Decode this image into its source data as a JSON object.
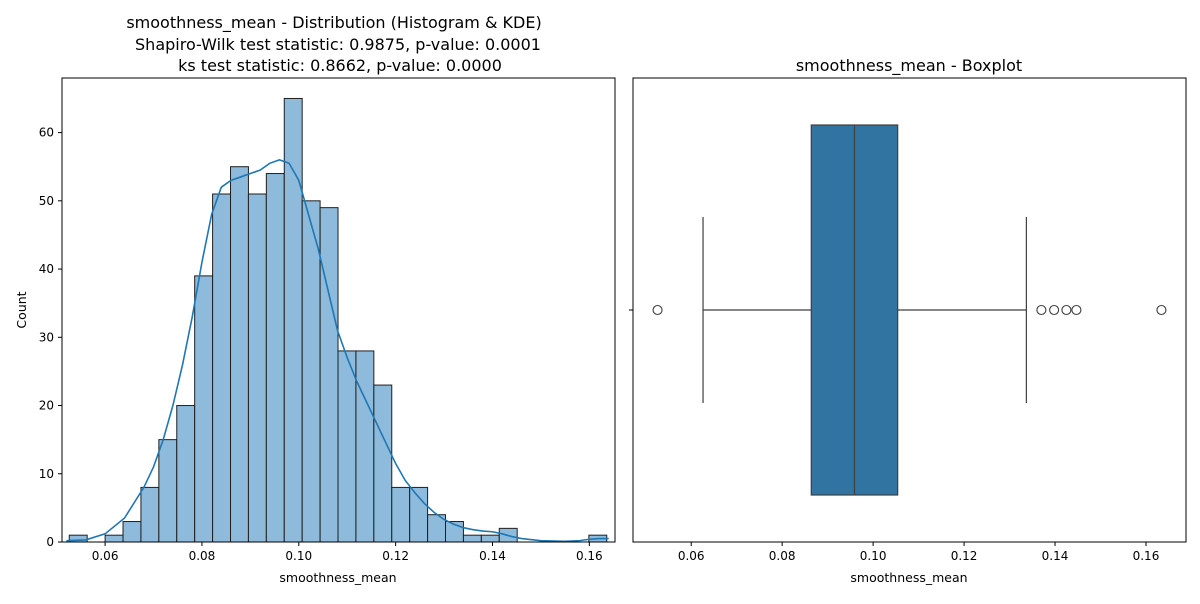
{
  "chart_data": [
    {
      "type": "histogram",
      "title": [
        "smoothness_mean - Distribution (Histogram & KDE)",
        "Shapiro-Wilk test statistic: 0.9875, p-value: 0.0001",
        "ks test statistic: 0.8662, p-value: 0.0000"
      ],
      "xlabel": "smoothness_mean",
      "ylabel": "Count",
      "xlim": [
        0.0511,
        0.1653
      ],
      "ylim": [
        0,
        68
      ],
      "xticks": [
        0.06,
        0.08,
        0.1,
        0.12,
        0.14,
        0.16
      ],
      "xtick_labels": [
        "0.06",
        "0.08",
        "0.10",
        "0.12",
        "0.14",
        "0.16"
      ],
      "yticks": [
        0,
        10,
        20,
        30,
        40,
        50,
        60
      ],
      "ytick_labels": [
        "0",
        "10",
        "20",
        "30",
        "40",
        "50",
        "60"
      ],
      "bar_color": "#8ebadb",
      "kde_color": "#1f77b4",
      "bins": [
        {
          "x0": 0.0526,
          "x1": 0.0563,
          "count": 1
        },
        {
          "x0": 0.0563,
          "x1": 0.06,
          "count": 0
        },
        {
          "x0": 0.06,
          "x1": 0.0637,
          "count": 1
        },
        {
          "x0": 0.0637,
          "x1": 0.0674,
          "count": 3
        },
        {
          "x0": 0.0674,
          "x1": 0.0711,
          "count": 8
        },
        {
          "x0": 0.0711,
          "x1": 0.0748,
          "count": 15
        },
        {
          "x0": 0.0748,
          "x1": 0.0785,
          "count": 20
        },
        {
          "x0": 0.0785,
          "x1": 0.0822,
          "count": 39
        },
        {
          "x0": 0.0822,
          "x1": 0.0859,
          "count": 51
        },
        {
          "x0": 0.0859,
          "x1": 0.0896,
          "count": 55
        },
        {
          "x0": 0.0896,
          "x1": 0.0933,
          "count": 51
        },
        {
          "x0": 0.0933,
          "x1": 0.097,
          "count": 54
        },
        {
          "x0": 0.097,
          "x1": 0.1007,
          "count": 65
        },
        {
          "x0": 0.1007,
          "x1": 0.1044,
          "count": 50
        },
        {
          "x0": 0.1044,
          "x1": 0.1081,
          "count": 49
        },
        {
          "x0": 0.1081,
          "x1": 0.1118,
          "count": 28
        },
        {
          "x0": 0.1118,
          "x1": 0.1155,
          "count": 28
        },
        {
          "x0": 0.1155,
          "x1": 0.1192,
          "count": 23
        },
        {
          "x0": 0.1192,
          "x1": 0.1229,
          "count": 8
        },
        {
          "x0": 0.1229,
          "x1": 0.1266,
          "count": 8
        },
        {
          "x0": 0.1266,
          "x1": 0.1303,
          "count": 4
        },
        {
          "x0": 0.1303,
          "x1": 0.134,
          "count": 3
        },
        {
          "x0": 0.134,
          "x1": 0.1377,
          "count": 1
        },
        {
          "x0": 0.1377,
          "x1": 0.1414,
          "count": 1
        },
        {
          "x0": 0.1414,
          "x1": 0.1451,
          "count": 2
        },
        {
          "x0": 0.1451,
          "x1": 0.1488,
          "count": 0
        },
        {
          "x0": 0.1488,
          "x1": 0.1525,
          "count": 0
        },
        {
          "x0": 0.1525,
          "x1": 0.1562,
          "count": 0
        },
        {
          "x0": 0.1562,
          "x1": 0.1599,
          "count": 0
        },
        {
          "x0": 0.1599,
          "x1": 0.1636,
          "count": 1
        }
      ],
      "kde": {
        "x": [
          0.052,
          0.056,
          0.06,
          0.064,
          0.068,
          0.07,
          0.072,
          0.074,
          0.076,
          0.078,
          0.08,
          0.082,
          0.084,
          0.086,
          0.088,
          0.09,
          0.092,
          0.094,
          0.096,
          0.098,
          0.1,
          0.102,
          0.104,
          0.106,
          0.108,
          0.11,
          0.112,
          0.114,
          0.116,
          0.118,
          0.12,
          0.122,
          0.124,
          0.126,
          0.128,
          0.13,
          0.132,
          0.134,
          0.136,
          0.138,
          0.14,
          0.142,
          0.144,
          0.146,
          0.15,
          0.155,
          0.158,
          0.16,
          0.162,
          0.164
        ],
        "y": [
          0.2,
          0.3,
          1.2,
          3.5,
          8.0,
          11.0,
          15.0,
          20.0,
          26.0,
          33.0,
          41.0,
          48.0,
          52.0,
          53.0,
          53.5,
          54.0,
          54.5,
          55.5,
          56.0,
          55.5,
          53.0,
          48.0,
          43.0,
          37.0,
          31.0,
          27.0,
          23.5,
          20.5,
          17.5,
          14.5,
          11.5,
          9.0,
          7.2,
          5.6,
          4.3,
          3.3,
          2.6,
          2.1,
          1.8,
          1.6,
          1.5,
          1.2,
          0.8,
          0.5,
          0.2,
          0.1,
          0.2,
          0.4,
          0.5,
          0.5
        ]
      }
    },
    {
      "type": "boxplot",
      "title": "smoothness_mean - Boxplot",
      "xlabel": "smoothness_mean",
      "xlim": [
        0.0472,
        0.1688
      ],
      "xticks": [
        0.06,
        0.08,
        0.1,
        0.12,
        0.14,
        0.16
      ],
      "xtick_labels": [
        "0.06",
        "0.08",
        "0.10",
        "0.12",
        "0.14",
        "0.16"
      ],
      "box_color": "#3274a1",
      "whisker_low": 0.0626,
      "q1": 0.0864,
      "median": 0.0959,
      "q3": 0.1054,
      "whisker_high": 0.1337,
      "outliers": [
        0.0526,
        0.137,
        0.1398,
        0.1425,
        0.1447,
        0.1634
      ]
    }
  ]
}
